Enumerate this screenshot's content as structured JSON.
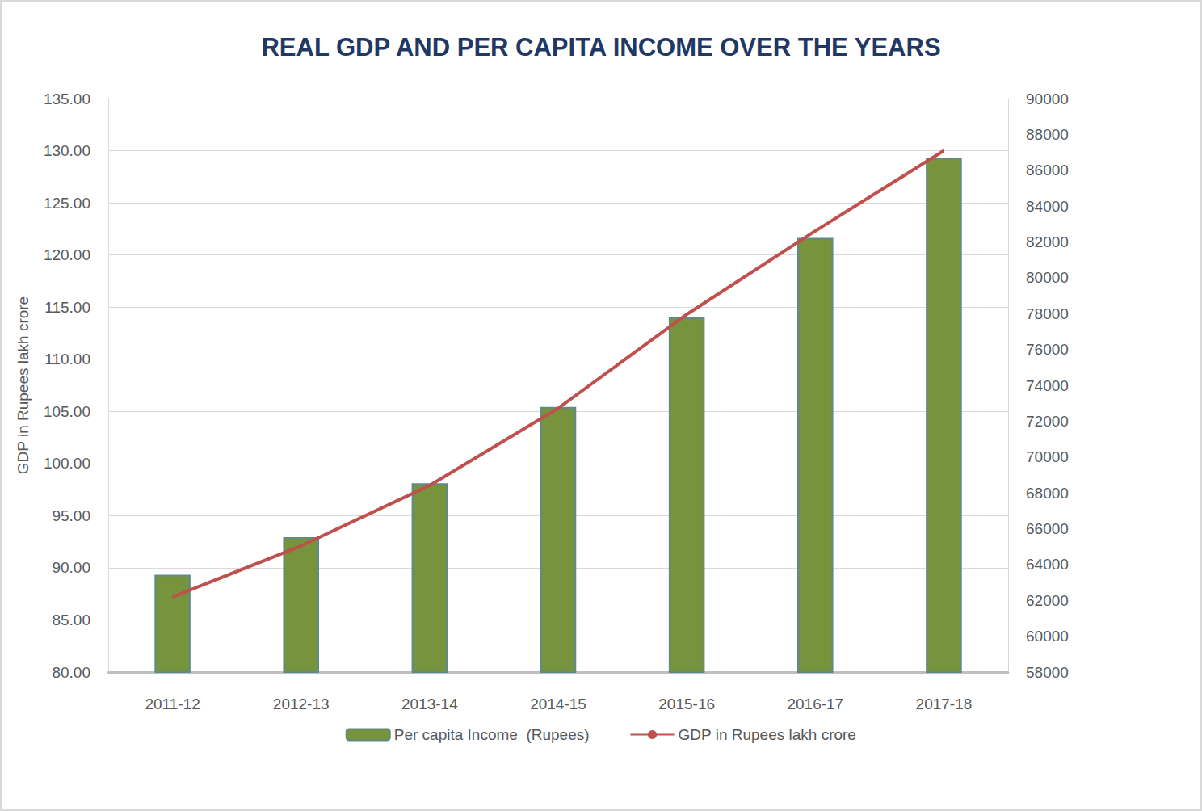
{
  "chart_data": {
    "type": "bar",
    "title": "REAL GDP AND PER CAPITA INCOME OVER THE YEARS",
    "y_label": "GDP in Rupees lakh crore",
    "categories": [
      "2011-12",
      "2012-13",
      "2013-14",
      "2014-15",
      "2015-16",
      "2016-17",
      "2017-18"
    ],
    "series": [
      {
        "name": "Per capita Income  (Rupees)",
        "type": "bar",
        "axis": "y2",
        "color": "#77933c",
        "values": [
          63430,
          65530,
          68540,
          72800,
          77800,
          82220,
          86700
        ]
      },
      {
        "name": "GDP in Rupees lakh crore",
        "type": "line",
        "color": "#c0504d",
        "marker": "none",
        "line_style": "solid",
        "values": [
          87.2,
          92.1,
          97.9,
          105.3,
          114.3,
          122.3,
          130.0
        ]
      }
    ],
    "ylim": [
      80,
      135
    ],
    "yticks": [
      {
        "value": 80,
        "label": "80.00"
      },
      {
        "value": 85,
        "label": "85.00"
      },
      {
        "value": 90,
        "label": "90.00"
      },
      {
        "value": 95,
        "label": "95.00"
      },
      {
        "value": 100,
        "label": "100.00"
      },
      {
        "value": 105,
        "label": "105.00"
      },
      {
        "value": 110,
        "label": "110.00"
      },
      {
        "value": 115,
        "label": "115.00"
      },
      {
        "value": 120,
        "label": "120.00"
      },
      {
        "value": 125,
        "label": "125.00"
      },
      {
        "value": 130,
        "label": "130.00"
      },
      {
        "value": 135,
        "label": "135.00"
      }
    ],
    "y2lim": [
      58000,
      90000
    ],
    "y2ticks": [
      58000,
      60000,
      62000,
      64000,
      66000,
      68000,
      70000,
      72000,
      74000,
      76000,
      78000,
      80000,
      82000,
      84000,
      86000,
      88000,
      90000
    ],
    "grid": true,
    "legend": "bottom"
  }
}
